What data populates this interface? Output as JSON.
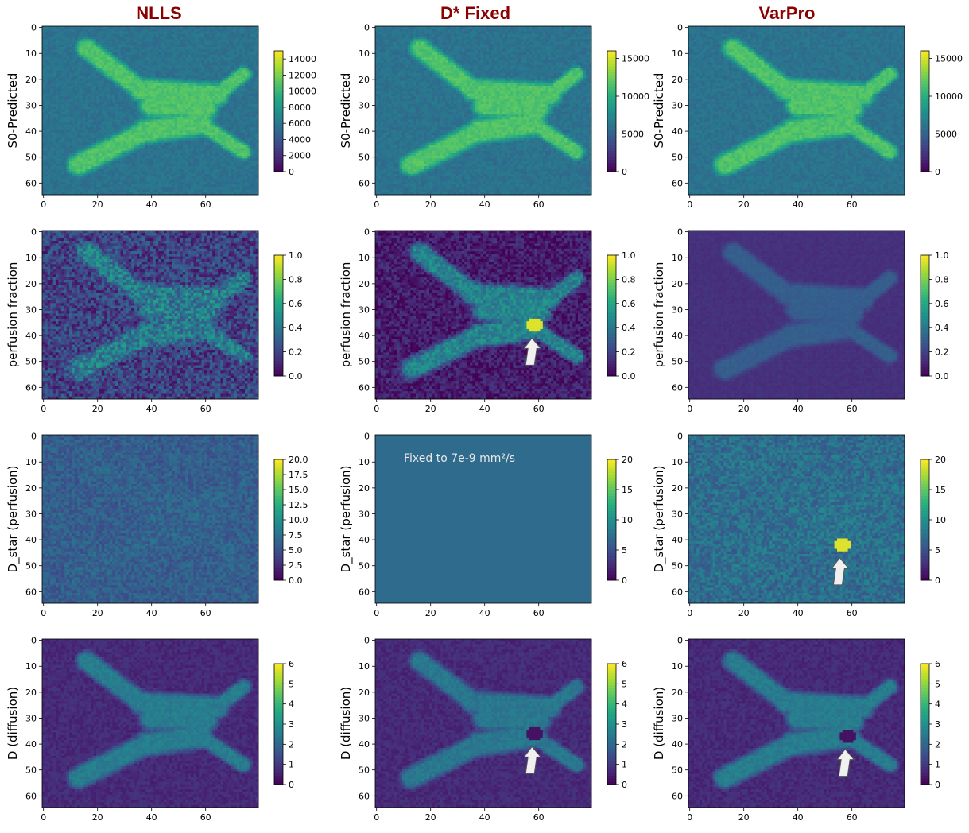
{
  "columns": [
    "NLLS",
    "D* Fixed",
    "VarPro"
  ],
  "annotation_text": "Fixed to 7e-9 mm²/s",
  "colors": {
    "viridis": [
      "#440154",
      "#472c7a",
      "#3b518b",
      "#2c718e",
      "#21908d",
      "#27ad81",
      "#5cc863",
      "#aadc32",
      "#fde725"
    ],
    "title": "#8b0000",
    "arrow": "#f0f0f0"
  },
  "chart_data": [
    {
      "type": "heatmap",
      "column": "NLLS",
      "ylabel": "S0-Predicted",
      "x_ticks": [
        0,
        20,
        40,
        60
      ],
      "y_ticks": [
        0,
        10,
        20,
        30,
        40,
        50,
        60
      ],
      "xlim": [
        0,
        79
      ],
      "ylim": [
        64,
        0
      ],
      "colorbar_ticks": [
        "0",
        "2000",
        "4000",
        "6000",
        "8000",
        "10000",
        "12000",
        "14000"
      ],
      "colorbar_range": [
        0,
        15000
      ],
      "background_level": 0.38,
      "tissue_level": 0.72,
      "noise": 0.04,
      "arrow": false,
      "uniform": false
    },
    {
      "type": "heatmap",
      "column": "D* Fixed",
      "ylabel": "S0-Predicted",
      "x_ticks": [
        0,
        20,
        40,
        60
      ],
      "y_ticks": [
        0,
        10,
        20,
        30,
        40,
        50,
        60
      ],
      "xlim": [
        0,
        79
      ],
      "ylim": [
        64,
        0
      ],
      "colorbar_ticks": [
        "0",
        "5000",
        "10000",
        "15000"
      ],
      "colorbar_range": [
        0,
        16000
      ],
      "background_level": 0.38,
      "tissue_level": 0.72,
      "noise": 0.04,
      "arrow": false,
      "uniform": false
    },
    {
      "type": "heatmap",
      "column": "VarPro",
      "ylabel": "S0-Predicted",
      "x_ticks": [
        0,
        20,
        40,
        60
      ],
      "y_ticks": [
        0,
        10,
        20,
        30,
        40,
        50,
        60
      ],
      "xlim": [
        0,
        79
      ],
      "ylim": [
        64,
        0
      ],
      "colorbar_ticks": [
        "0",
        "5000",
        "10000",
        "15000"
      ],
      "colorbar_range": [
        0,
        16000
      ],
      "background_level": 0.38,
      "tissue_level": 0.72,
      "noise": 0.04,
      "arrow": false,
      "uniform": false
    },
    {
      "type": "heatmap",
      "column": "NLLS",
      "ylabel": "perfusion fraction",
      "x_ticks": [
        0,
        20,
        40,
        60
      ],
      "y_ticks": [
        0,
        10,
        20,
        30,
        40,
        50,
        60
      ],
      "xlim": [
        0,
        79
      ],
      "ylim": [
        64,
        0
      ],
      "colorbar_ticks": [
        "0.0",
        "0.2",
        "0.4",
        "0.6",
        "0.8",
        "1.0"
      ],
      "colorbar_range": [
        0,
        1
      ],
      "background_level": 0.2,
      "tissue_level": 0.42,
      "noise": 0.16,
      "arrow": false,
      "uniform": false
    },
    {
      "type": "heatmap",
      "column": "D* Fixed",
      "ylabel": "perfusion fraction",
      "x_ticks": [
        0,
        20,
        40,
        60
      ],
      "y_ticks": [
        0,
        10,
        20,
        30,
        40,
        50,
        60
      ],
      "xlim": [
        0,
        79
      ],
      "ylim": [
        64,
        0
      ],
      "colorbar_ticks": [
        "0.0",
        "0.2",
        "0.4",
        "0.6",
        "0.8",
        "1.0"
      ],
      "colorbar_range": [
        0,
        1
      ],
      "background_level": 0.08,
      "tissue_level": 0.45,
      "noise": 0.1,
      "arrow": true,
      "arrow_x": 57.5,
      "arrow_y": 41,
      "uniform": false
    },
    {
      "type": "heatmap",
      "column": "VarPro",
      "ylabel": "perfusion fraction",
      "x_ticks": [
        0,
        20,
        40,
        60
      ],
      "y_ticks": [
        0,
        10,
        20,
        30,
        40,
        50,
        60
      ],
      "xlim": [
        0,
        79
      ],
      "ylim": [
        64,
        0
      ],
      "colorbar_ticks": [
        "0.0",
        "0.2",
        "0.4",
        "0.6",
        "0.8",
        "1.0"
      ],
      "colorbar_range": [
        0,
        1
      ],
      "background_level": 0.14,
      "tissue_level": 0.3,
      "noise": 0.02,
      "arrow": false,
      "uniform": false
    },
    {
      "type": "heatmap",
      "column": "NLLS",
      "ylabel": "D_star (perfusion)",
      "x_ticks": [
        0,
        20,
        40,
        60
      ],
      "y_ticks": [
        0,
        10,
        20,
        30,
        40,
        50,
        60
      ],
      "xlim": [
        0,
        79
      ],
      "ylim": [
        64,
        0
      ],
      "colorbar_ticks": [
        "0.0",
        "2.5",
        "5.0",
        "7.5",
        "10.0",
        "12.5",
        "15.0",
        "17.5",
        "20.0"
      ],
      "colorbar_range": [
        0,
        20
      ],
      "background_level": 0.3,
      "tissue_level": 0.32,
      "noise": 0.08,
      "arrow": false,
      "uniform": false
    },
    {
      "type": "heatmap",
      "column": "D* Fixed",
      "ylabel": "D_star (perfusion)",
      "x_ticks": [
        0,
        20,
        40,
        60
      ],
      "y_ticks": [
        0,
        10,
        20,
        30,
        40,
        50,
        60
      ],
      "xlim": [
        0,
        79
      ],
      "ylim": [
        64,
        0
      ],
      "colorbar_ticks": [
        "0",
        "5",
        "10",
        "15",
        "20"
      ],
      "colorbar_range": [
        0,
        20
      ],
      "background_level": 0.35,
      "tissue_level": 0.35,
      "noise": 0,
      "arrow": false,
      "uniform": true
    },
    {
      "type": "heatmap",
      "column": "VarPro",
      "ylabel": "D_star (perfusion)",
      "x_ticks": [
        0,
        20,
        40,
        60
      ],
      "y_ticks": [
        0,
        10,
        20,
        30,
        40,
        50,
        60
      ],
      "xlim": [
        0,
        79
      ],
      "ylim": [
        64,
        0
      ],
      "colorbar_ticks": [
        "0",
        "5",
        "10",
        "15",
        "20"
      ],
      "colorbar_range": [
        0,
        20
      ],
      "background_level": 0.36,
      "tissue_level": 0.38,
      "noise": 0.1,
      "arrow": true,
      "arrow_x": 55.5,
      "arrow_y": 47,
      "uniform": false
    },
    {
      "type": "heatmap",
      "column": "NLLS",
      "ylabel": "D (diffusion)",
      "x_ticks": [
        0,
        20,
        40,
        60
      ],
      "y_ticks": [
        0,
        10,
        20,
        30,
        40,
        50,
        60
      ],
      "xlim": [
        0,
        79
      ],
      "ylim": [
        64,
        0
      ],
      "colorbar_ticks": [
        "0",
        "1",
        "2",
        "3",
        "4",
        "5",
        "6"
      ],
      "colorbar_range": [
        0,
        6
      ],
      "background_level": 0.12,
      "tissue_level": 0.42,
      "noise": 0.04,
      "arrow": false,
      "uniform": false
    },
    {
      "type": "heatmap",
      "column": "D* Fixed",
      "ylabel": "D (diffusion)",
      "x_ticks": [
        0,
        20,
        40,
        60
      ],
      "y_ticks": [
        0,
        10,
        20,
        30,
        40,
        50,
        60
      ],
      "xlim": [
        0,
        79
      ],
      "ylim": [
        64,
        0
      ],
      "colorbar_ticks": [
        "0",
        "1",
        "2",
        "3",
        "4",
        "5",
        "6"
      ],
      "colorbar_range": [
        0,
        6
      ],
      "background_level": 0.12,
      "tissue_level": 0.4,
      "noise": 0.04,
      "arrow": true,
      "arrow_x": 57.5,
      "arrow_y": 41,
      "uniform": false
    },
    {
      "type": "heatmap",
      "column": "VarPro",
      "ylabel": "D (diffusion)",
      "x_ticks": [
        0,
        20,
        40,
        60
      ],
      "y_ticks": [
        0,
        10,
        20,
        30,
        40,
        50,
        60
      ],
      "xlim": [
        0,
        79
      ],
      "ylim": [
        64,
        0
      ],
      "colorbar_ticks": [
        "0",
        "1",
        "2",
        "3",
        "4",
        "5",
        "6"
      ],
      "colorbar_range": [
        0,
        6
      ],
      "background_level": 0.12,
      "tissue_level": 0.42,
      "noise": 0.04,
      "arrow": true,
      "arrow_x": 57.5,
      "arrow_y": 42,
      "uniform": false
    }
  ]
}
